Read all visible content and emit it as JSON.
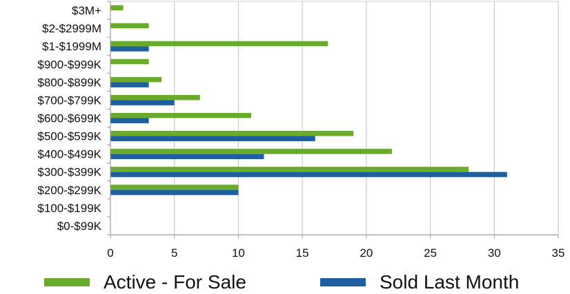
{
  "chart_data": {
    "type": "bar",
    "orientation": "horizontal",
    "categories": [
      "$3M+",
      "$2-$2999M",
      "$1-$1999M",
      "$900-$999K",
      "$800-$899K",
      "$700-$799K",
      "$600-$699K",
      "$500-$599K",
      "$400-$499K",
      "$300-$399K",
      "$200-$299K",
      "$100-$199K",
      "$0-$99K"
    ],
    "series": [
      {
        "name": "Active - For Sale",
        "color": "#6aab2e",
        "values": [
          1,
          3,
          17,
          3,
          4,
          7,
          11,
          19,
          22,
          28,
          10,
          0,
          0
        ]
      },
      {
        "name": "Sold Last Month",
        "color": "#1f5f9e",
        "values": [
          0,
          0,
          3,
          0,
          3,
          5,
          3,
          16,
          12,
          31,
          10,
          0,
          0
        ]
      }
    ],
    "xlim": [
      0,
      35
    ],
    "xticks": [
      0,
      5,
      10,
      15,
      20,
      25,
      30,
      35
    ],
    "grid": "vertical",
    "legend_position": "bottom"
  }
}
